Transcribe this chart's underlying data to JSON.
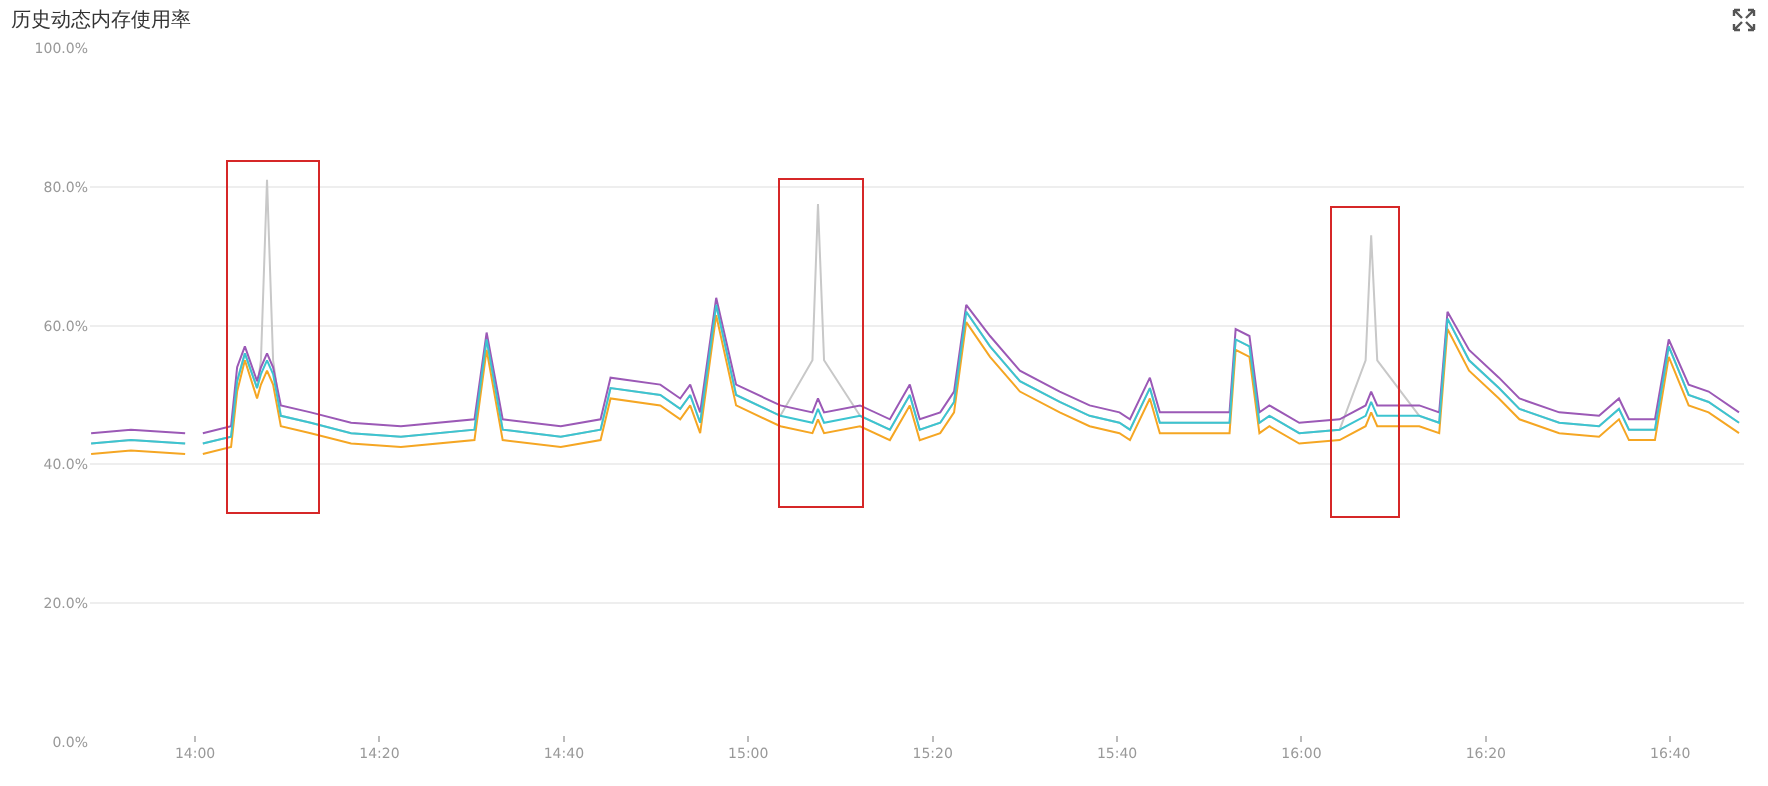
{
  "chart_data": {
    "type": "line",
    "title": "历史动态内存使用率",
    "x": [
      13.812,
      13.884,
      13.982,
      13.998,
      14.014,
      14.065,
      14.076,
      14.09,
      14.112,
      14.119,
      14.13,
      14.141,
      14.155,
      14.209,
      14.282,
      14.372,
      14.505,
      14.527,
      14.556,
      14.661,
      14.733,
      14.751,
      14.841,
      14.877,
      14.895,
      14.913,
      14.942,
      14.978,
      15.058,
      15.116,
      15.126,
      15.137,
      15.202,
      15.256,
      15.292,
      15.31,
      15.347,
      15.372,
      15.394,
      15.437,
      15.491,
      15.563,
      15.617,
      15.671,
      15.69,
      15.726,
      15.744,
      15.87,
      15.881,
      15.906,
      15.924,
      15.942,
      15.996,
      16.069,
      16.116,
      16.126,
      16.137,
      16.213,
      16.249,
      16.264,
      16.303,
      16.357,
      16.394,
      16.466,
      16.538,
      16.574,
      16.592,
      16.639,
      16.664,
      16.7,
      16.736,
      16.791
    ],
    "series": [
      {
        "color": "#c8c8c8",
        "values": [
          43,
          43.5,
          43,
          null,
          43,
          44,
          52,
          56,
          51,
          55,
          81,
          55,
          47,
          46,
          44.5,
          44,
          45,
          58,
          45,
          44,
          45,
          51,
          50,
          48,
          50,
          46,
          63,
          50,
          47,
          55,
          77.5,
          55,
          47,
          45,
          50,
          45,
          46,
          49,
          62,
          57,
          52,
          49,
          47,
          46,
          45,
          51,
          46,
          46,
          58,
          57,
          46,
          47,
          44.5,
          45,
          55,
          73,
          55,
          47,
          46,
          61,
          55,
          51,
          48,
          46,
          45.5,
          48,
          45,
          45,
          57,
          50,
          49,
          46
        ]
      },
      {
        "color": "#9b59b6",
        "values": [
          44.5,
          45,
          44.5,
          null,
          44.5,
          45.5,
          54,
          57,
          52,
          54,
          56,
          54,
          48.5,
          47.5,
          46,
          45.5,
          46.5,
          59,
          46.5,
          45.5,
          46.5,
          52.5,
          51.5,
          49.5,
          51.5,
          47.5,
          64,
          51.5,
          48.5,
          47.5,
          49.5,
          47.5,
          48.5,
          46.5,
          51.5,
          46.5,
          47.5,
          50.5,
          63,
          58.5,
          53.5,
          50.5,
          48.5,
          47.5,
          46.5,
          52.5,
          47.5,
          47.5,
          59.5,
          58.5,
          47.5,
          48.5,
          46,
          46.5,
          48.5,
          50.5,
          48.5,
          48.5,
          47.5,
          62,
          56.5,
          52.5,
          49.5,
          47.5,
          47,
          49.5,
          46.5,
          46.5,
          58,
          51.5,
          50.5,
          47.5
        ]
      },
      {
        "color": "#f5a623",
        "values": [
          41.5,
          42,
          41.5,
          null,
          41.5,
          42.5,
          50.5,
          55,
          49.5,
          51.5,
          53.5,
          51.5,
          45.5,
          44.5,
          43,
          42.5,
          43.5,
          56.5,
          43.5,
          42.5,
          43.5,
          49.5,
          48.5,
          46.5,
          48.5,
          44.5,
          61.5,
          48.5,
          45.5,
          44.5,
          46.5,
          44.5,
          45.5,
          43.5,
          48.5,
          43.5,
          44.5,
          47.5,
          60.5,
          55.5,
          50.5,
          47.5,
          45.5,
          44.5,
          43.5,
          49.5,
          44.5,
          44.5,
          56.5,
          55.5,
          44.5,
          45.5,
          43,
          43.5,
          45.5,
          47.5,
          45.5,
          45.5,
          44.5,
          59.5,
          53.5,
          49.5,
          46.5,
          44.5,
          44,
          46.5,
          43.5,
          43.5,
          55.5,
          48.5,
          47.5,
          44.5
        ]
      },
      {
        "color": "#3cc4d0",
        "values": [
          43,
          43.5,
          43,
          null,
          43,
          44,
          52,
          56,
          51,
          53,
          55,
          53,
          47,
          46,
          44.5,
          44,
          45,
          58,
          45,
          44,
          45,
          51,
          50,
          48,
          50,
          46,
          63,
          50,
          47,
          46,
          48,
          46,
          47,
          45,
          50,
          45,
          46,
          49,
          62,
          57,
          52,
          49,
          47,
          46,
          45,
          51,
          46,
          46,
          58,
          57,
          46,
          47,
          44.5,
          45,
          47,
          49,
          47,
          47,
          46,
          61,
          55,
          51,
          48,
          46,
          45.5,
          48,
          45,
          45,
          57,
          50,
          49,
          46
        ]
      }
    ],
    "xlim": [
      13.81,
      16.8
    ],
    "xticks": [
      {
        "value": 14,
        "label": "14:00"
      },
      {
        "value": 14.3333,
        "label": "14:20"
      },
      {
        "value": 14.6667,
        "label": "14:40"
      },
      {
        "value": 15,
        "label": "15:00"
      },
      {
        "value": 15.3333,
        "label": "15:20"
      },
      {
        "value": 15.6667,
        "label": "15:40"
      },
      {
        "value": 16,
        "label": "16:00"
      },
      {
        "value": 16.3333,
        "label": "16:20"
      },
      {
        "value": 16.6667,
        "label": "16:40"
      }
    ],
    "ylim": [
      0,
      100
    ],
    "yticks": [
      {
        "value": 0,
        "label": "0.0%"
      },
      {
        "value": 20,
        "label": "20.0%"
      },
      {
        "value": 40,
        "label": "40.0%"
      },
      {
        "value": 60,
        "label": "60.0%"
      },
      {
        "value": 80,
        "label": "80.0%"
      },
      {
        "value": 100,
        "label": "100.0%"
      }
    ],
    "grid": "y",
    "marker": "none",
    "line_style": "solid"
  }
}
